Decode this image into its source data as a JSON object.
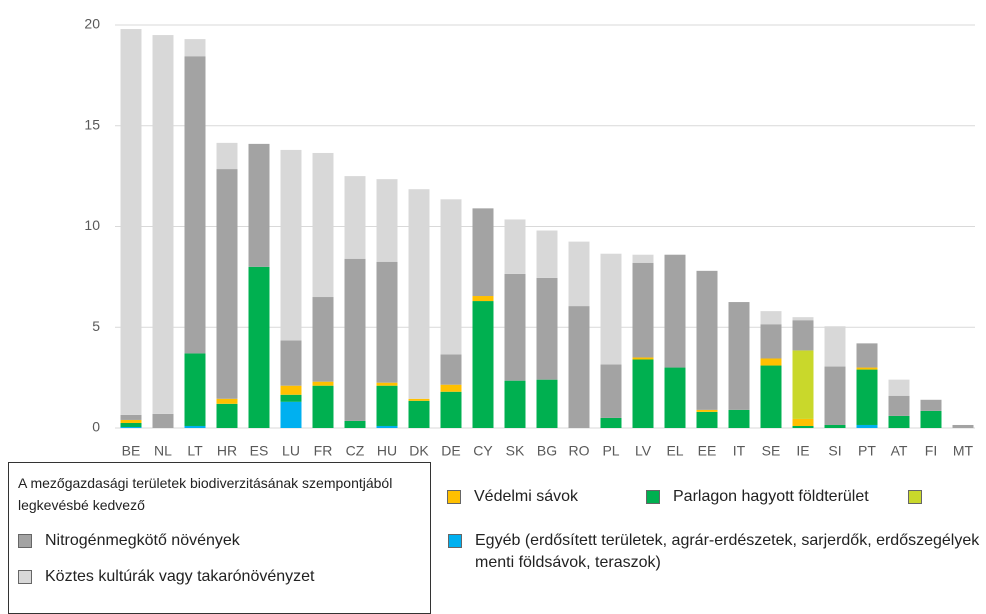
{
  "chart_data": {
    "type": "stacked_bar",
    "categories": [
      "BE",
      "NL",
      "LT",
      "HR",
      "ES",
      "LU",
      "FR",
      "CZ",
      "HU",
      "DK",
      "DE",
      "CY",
      "SK",
      "BG",
      "RO",
      "PL",
      "LV",
      "EL",
      "EE",
      "IT",
      "SE",
      "IE",
      "SI",
      "PT",
      "AT",
      "FI",
      "MT"
    ],
    "series": [
      {
        "name": "Egyéb (erdősített területek, agrár-erdészetek, sarjerdők, erdőszegélyek menti földsávok, teraszok)",
        "color": "#00b0f0",
        "values": [
          0.05,
          0,
          0.1,
          0,
          0,
          1.3,
          0,
          0,
          0.1,
          0,
          0,
          0,
          0,
          0,
          0,
          0,
          0,
          0,
          0,
          0,
          0,
          0,
          0,
          0.15,
          0,
          0,
          0
        ]
      },
      {
        "name": "Parlagon hagyott földterület",
        "color": "#00b050",
        "values": [
          0.2,
          0,
          3.6,
          1.2,
          8.0,
          0.35,
          2.1,
          0.35,
          2.0,
          1.35,
          1.8,
          6.3,
          2.35,
          2.4,
          0,
          0.5,
          3.4,
          3.0,
          0.8,
          0.9,
          3.1,
          0.1,
          0.15,
          2.75,
          0.6,
          0.85,
          0
        ]
      },
      {
        "name": "Védelmi sávok",
        "color": "#ffc000",
        "values": [
          0.15,
          0,
          0,
          0.25,
          0,
          0.45,
          0.2,
          0,
          0.15,
          0.1,
          0.35,
          0.25,
          0,
          0,
          0,
          0,
          0.1,
          0,
          0.1,
          0,
          0.35,
          0.35,
          0,
          0.1,
          0,
          0,
          0
        ]
      },
      {
        "name": "A mezőgazdasági területek biodiverzitásának szempontjából legkevésbé kedvező",
        "color": "#c9d82b",
        "values": [
          0,
          0,
          0,
          0,
          0,
          0,
          0,
          0,
          0,
          0,
          0,
          0,
          0,
          0,
          0,
          0,
          0,
          0,
          0,
          0,
          0,
          3.4,
          0,
          0,
          0,
          0,
          0
        ]
      },
      {
        "name": "Nitrogénmegkötő növények",
        "color": "#a3a3a3",
        "values": [
          0.25,
          0.7,
          14.75,
          11.4,
          6.1,
          2.25,
          4.2,
          8.05,
          6.0,
          0,
          1.5,
          4.35,
          5.3,
          5.05,
          6.05,
          2.65,
          4.7,
          5.6,
          6.9,
          5.35,
          1.7,
          1.5,
          2.9,
          1.2,
          1.0,
          0.55,
          0.15
        ]
      },
      {
        "name": "Köztes kultúrák vagy takarónövényzet",
        "color": "#d8d8d8",
        "values": [
          19.15,
          18.8,
          0.85,
          1.3,
          0,
          9.45,
          7.15,
          4.1,
          4.1,
          10.4,
          7.7,
          0,
          2.7,
          2.35,
          3.2,
          5.5,
          0.4,
          0,
          0,
          0,
          0.65,
          0.15,
          2.0,
          0,
          0.8,
          0,
          0
        ]
      }
    ],
    "ylim": [
      0,
      20
    ],
    "yticks": [
      0,
      5,
      10,
      15,
      20
    ],
    "grid": true
  }
}
